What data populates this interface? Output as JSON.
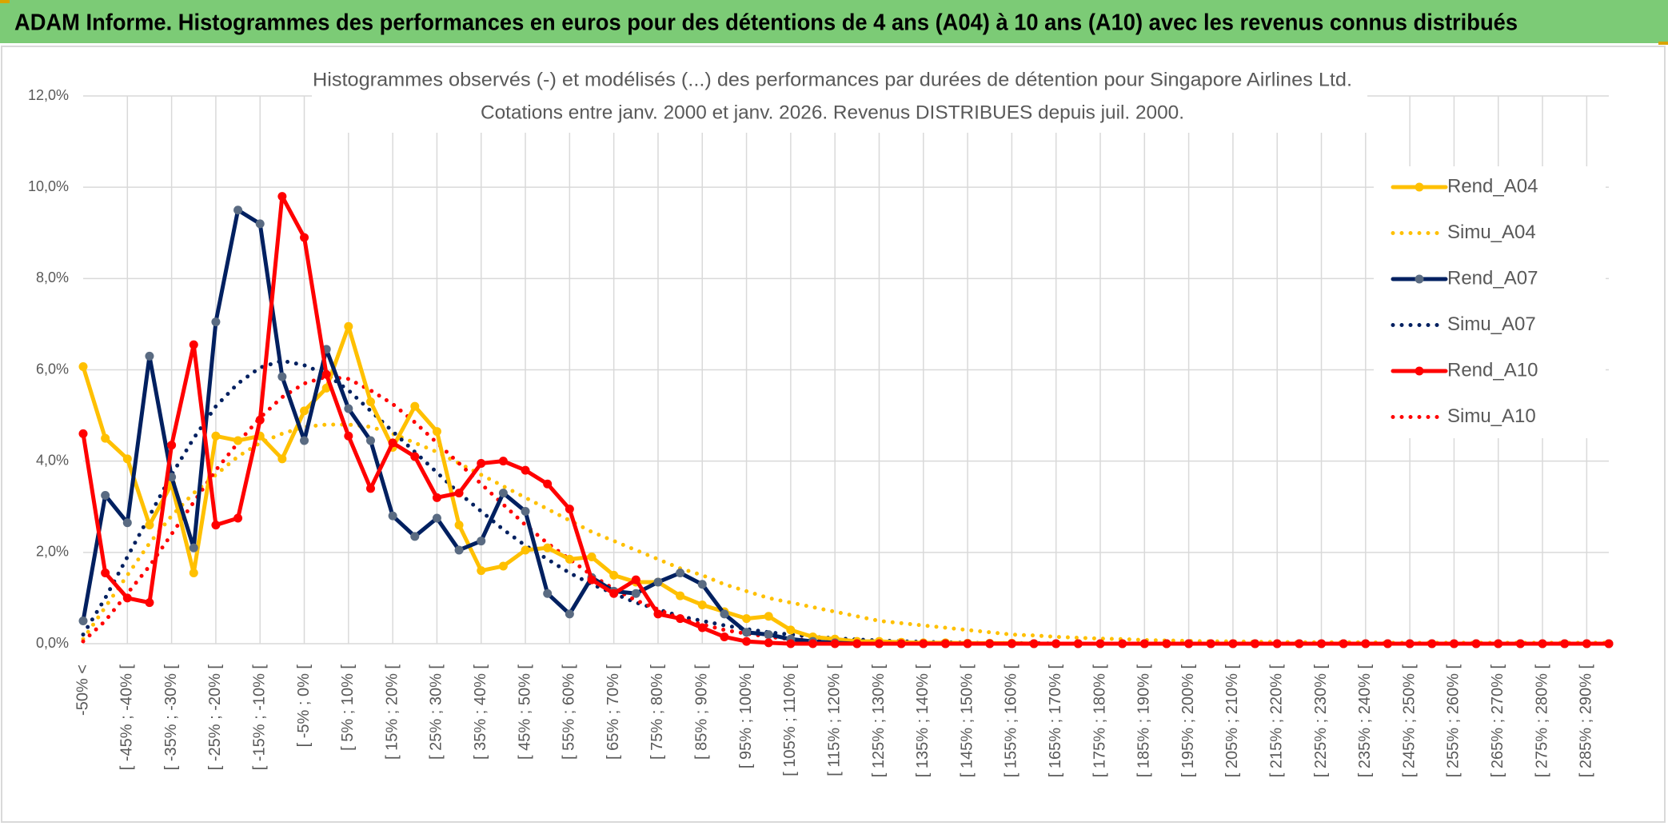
{
  "header": {
    "title": "ADAM Informe. Histogrammes des performances en euros pour des détentions de 4 ans (A04) à 10 ans (A10) avec les revenus connus distribués"
  },
  "chart_data": {
    "type": "line",
    "title": "Histogrammes observés (-) et modélisés (...) des performances par durées de détention pour Singapore Airlines Ltd.",
    "subtitle": "Cotations entre janv. 2000 et janv. 2026. Revenus DISTRIBUES depuis juil. 2000.",
    "categories": [
      "-50% <",
      null,
      "[ -45% ; -40% [",
      null,
      "[ -35% ; -30% [",
      null,
      "[ -25% ; -20% [",
      null,
      "[ -15% ; -10% [",
      null,
      "[ -5% ; 0% [",
      null,
      "[ 5% ; 10% [",
      null,
      "[ 15% ; 20% [",
      null,
      "[ 25% ; 30% [",
      null,
      "[ 35% ; 40% [",
      null,
      "[ 45% ; 50% [",
      null,
      "[ 55% ; 60% [",
      null,
      "[ 65% ; 70% [",
      null,
      "[ 75% ; 80% [",
      null,
      "[ 85% ; 90% [",
      null,
      "[ 95% ; 100% [",
      null,
      "[ 105% ; 110% [",
      null,
      "[ 115% ; 120% [",
      null,
      "[ 125% ; 130% [",
      null,
      "[ 135% ; 140% [",
      null,
      "[ 145% ; 150% [",
      null,
      "[ 155% ; 160% [",
      null,
      "[ 165% ; 170% [",
      null,
      "[ 175% ; 180% [",
      null,
      "[ 185% ; 190% [",
      null,
      "[ 195% ; 200% [",
      null,
      "[ 205% ; 210% [",
      null,
      "[ 215% ; 220% [",
      null,
      "[ 225% ; 230% [",
      null,
      "[ 235% ; 240% [",
      null,
      "[ 245% ; 250% [",
      null,
      "[ 255% ; 260% [",
      null,
      "[ 265% ; 270% [",
      null,
      "[ 275% ; 280% [",
      null,
      "[ 285% ; 290% [",
      null
    ],
    "ylim": [
      0,
      12
    ],
    "yticks": [
      {
        "value": 0,
        "label": "0,0%"
      },
      {
        "value": 2,
        "label": "2,0%"
      },
      {
        "value": 4,
        "label": "4,0%"
      },
      {
        "value": 6,
        "label": "6,0%"
      },
      {
        "value": 8,
        "label": "8,0%"
      },
      {
        "value": 10,
        "label": "10,0%"
      },
      {
        "value": 12,
        "label": "12,0%"
      }
    ],
    "grid": true,
    "legend": "right",
    "series": [
      {
        "name": "Rend_A04",
        "color": "#ffc000",
        "line_style": "solid",
        "values": [
          6.07,
          4.5,
          4.05,
          2.6,
          3.5,
          1.55,
          4.55,
          4.45,
          4.55,
          4.05,
          5.1,
          5.6,
          6.95,
          5.3,
          4.3,
          5.2,
          4.65,
          2.6,
          1.6,
          1.7,
          2.05,
          2.1,
          1.85,
          1.9,
          1.5,
          1.35,
          1.35,
          1.05,
          0.85,
          0.7,
          0.55,
          0.6,
          0.3,
          0.15,
          0.1,
          0.05,
          0.05,
          0.03,
          0.02,
          0.02,
          0.01,
          0.01,
          0.01,
          0,
          0,
          0,
          0,
          0,
          0,
          0,
          0,
          0,
          0,
          0,
          0,
          0,
          0,
          0,
          0,
          0,
          0,
          0,
          0,
          0,
          0,
          0,
          0,
          0,
          0,
          0
        ]
      },
      {
        "name": "Simu_A04",
        "color": "#ffc000",
        "line_style": "dotted",
        "values": [
          0.1,
          0.8,
          1.5,
          2.2,
          2.8,
          3.3,
          3.7,
          4.1,
          4.4,
          4.6,
          4.75,
          4.8,
          4.8,
          4.75,
          4.6,
          4.4,
          4.2,
          3.95,
          3.7,
          3.45,
          3.2,
          2.95,
          2.7,
          2.45,
          2.25,
          2.05,
          1.85,
          1.65,
          1.5,
          1.3,
          1.15,
          1.0,
          0.9,
          0.8,
          0.7,
          0.6,
          0.5,
          0.45,
          0.4,
          0.35,
          0.3,
          0.25,
          0.2,
          0.18,
          0.15,
          0.13,
          0.11,
          0.1,
          0.08,
          0.07,
          0.06,
          0.05,
          0.05,
          0.04,
          0.04,
          0.03,
          0.03,
          0.03,
          0.03,
          0.02,
          0.02,
          0.02,
          0.02,
          0.02,
          0.02,
          0.02,
          0.02,
          0.02,
          0.02,
          0.02
        ]
      },
      {
        "name": "Rend_A07",
        "color": "#002060",
        "marker": "#5a6b82",
        "line_style": "solid",
        "values": [
          0.5,
          3.25,
          2.65,
          6.3,
          3.65,
          2.1,
          7.05,
          9.5,
          9.2,
          5.85,
          4.45,
          6.45,
          5.15,
          4.45,
          2.8,
          2.35,
          2.75,
          2.05,
          2.25,
          3.3,
          2.9,
          1.1,
          0.65,
          1.45,
          1.15,
          1.1,
          1.35,
          1.55,
          1.3,
          0.65,
          0.25,
          0.2,
          0.1,
          0.05,
          0.02,
          0,
          0,
          0,
          0,
          0,
          0,
          0,
          0,
          0,
          0,
          0,
          0,
          0,
          0,
          0,
          0,
          0,
          0,
          0,
          0,
          0,
          0,
          0,
          0,
          0,
          0,
          0,
          0,
          0,
          0,
          0,
          0,
          0,
          0,
          0
        ]
      },
      {
        "name": "Simu_A07",
        "color": "#002060",
        "line_style": "dotted",
        "values": [
          0.2,
          1.0,
          1.9,
          2.8,
          3.7,
          4.5,
          5.2,
          5.7,
          6.05,
          6.2,
          6.1,
          5.9,
          5.55,
          5.1,
          4.65,
          4.2,
          3.75,
          3.3,
          2.9,
          2.5,
          2.15,
          1.85,
          1.55,
          1.3,
          1.1,
          0.9,
          0.75,
          0.6,
          0.5,
          0.4,
          0.32,
          0.25,
          0.2,
          0.15,
          0.12,
          0.09,
          0.07,
          0.05,
          0.04,
          0.03,
          0.02,
          0.01,
          0.01,
          0.01,
          0,
          0,
          0,
          0,
          0,
          0,
          0,
          0,
          0,
          0,
          0,
          0,
          0,
          0,
          0,
          0,
          0,
          0,
          0,
          0,
          0,
          0,
          0,
          0,
          0,
          0
        ]
      },
      {
        "name": "Rend_A10",
        "color": "#ff0000",
        "line_style": "solid",
        "values": [
          4.6,
          1.55,
          1.0,
          0.9,
          4.35,
          6.55,
          2.6,
          2.75,
          4.9,
          9.8,
          8.9,
          5.9,
          4.55,
          3.4,
          4.4,
          4.1,
          3.2,
          3.3,
          3.95,
          4.0,
          3.8,
          3.5,
          2.95,
          1.4,
          1.1,
          1.4,
          0.65,
          0.55,
          0.35,
          0.15,
          0.05,
          0.02,
          0,
          0,
          0,
          0,
          0,
          0,
          0,
          0,
          0,
          0,
          0,
          0,
          0,
          0,
          0,
          0,
          0,
          0,
          0,
          0,
          0,
          0,
          0,
          0,
          0,
          0,
          0,
          0,
          0,
          0,
          0,
          0,
          0,
          0,
          0,
          0,
          0,
          0
        ]
      },
      {
        "name": "Simu_A10",
        "color": "#ff0000",
        "line_style": "dotted",
        "values": [
          0.05,
          0.5,
          1.1,
          1.7,
          2.4,
          3.1,
          3.8,
          4.4,
          4.95,
          5.4,
          5.7,
          5.85,
          5.8,
          5.55,
          5.25,
          4.85,
          4.4,
          3.95,
          3.5,
          3.05,
          2.6,
          2.2,
          1.85,
          1.5,
          1.2,
          0.95,
          0.75,
          0.55,
          0.42,
          0.3,
          0.22,
          0.15,
          0.1,
          0.07,
          0.05,
          0.03,
          0.02,
          0.01,
          0.01,
          0,
          0,
          0,
          0,
          0,
          0,
          0,
          0,
          0,
          0,
          0,
          0,
          0,
          0,
          0,
          0,
          0,
          0,
          0,
          0,
          0,
          0,
          0,
          0,
          0,
          0,
          0,
          0,
          0,
          0,
          0
        ]
      }
    ]
  }
}
